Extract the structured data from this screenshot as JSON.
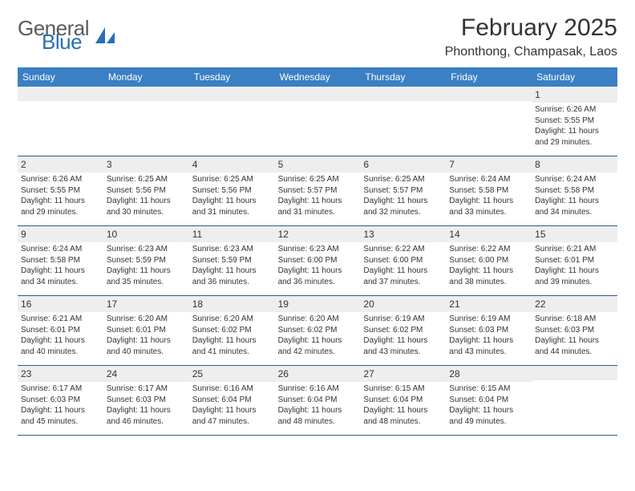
{
  "brand": {
    "general": "General",
    "blue": "Blue"
  },
  "title": "February 2025",
  "location": "Phonthong, Champasak, Laos",
  "colors": {
    "header_bg": "#3b7fc4",
    "header_text": "#ffffff",
    "row_divider": "#2a5b8f",
    "strip_bg": "#eeeeee",
    "logo_gray": "#5a5a5a",
    "logo_blue": "#2a6fb5"
  },
  "weekdays": [
    "Sunday",
    "Monday",
    "Tuesday",
    "Wednesday",
    "Thursday",
    "Friday",
    "Saturday"
  ],
  "weeks": [
    [
      {
        "empty": true
      },
      {
        "empty": true
      },
      {
        "empty": true
      },
      {
        "empty": true
      },
      {
        "empty": true
      },
      {
        "empty": true
      },
      {
        "n": "1",
        "sunrise": "Sunrise: 6:26 AM",
        "sunset": "Sunset: 5:55 PM",
        "day1": "Daylight: 11 hours",
        "day2": "and 29 minutes."
      }
    ],
    [
      {
        "n": "2",
        "sunrise": "Sunrise: 6:26 AM",
        "sunset": "Sunset: 5:55 PM",
        "day1": "Daylight: 11 hours",
        "day2": "and 29 minutes."
      },
      {
        "n": "3",
        "sunrise": "Sunrise: 6:25 AM",
        "sunset": "Sunset: 5:56 PM",
        "day1": "Daylight: 11 hours",
        "day2": "and 30 minutes."
      },
      {
        "n": "4",
        "sunrise": "Sunrise: 6:25 AM",
        "sunset": "Sunset: 5:56 PM",
        "day1": "Daylight: 11 hours",
        "day2": "and 31 minutes."
      },
      {
        "n": "5",
        "sunrise": "Sunrise: 6:25 AM",
        "sunset": "Sunset: 5:57 PM",
        "day1": "Daylight: 11 hours",
        "day2": "and 31 minutes."
      },
      {
        "n": "6",
        "sunrise": "Sunrise: 6:25 AM",
        "sunset": "Sunset: 5:57 PM",
        "day1": "Daylight: 11 hours",
        "day2": "and 32 minutes."
      },
      {
        "n": "7",
        "sunrise": "Sunrise: 6:24 AM",
        "sunset": "Sunset: 5:58 PM",
        "day1": "Daylight: 11 hours",
        "day2": "and 33 minutes."
      },
      {
        "n": "8",
        "sunrise": "Sunrise: 6:24 AM",
        "sunset": "Sunset: 5:58 PM",
        "day1": "Daylight: 11 hours",
        "day2": "and 34 minutes."
      }
    ],
    [
      {
        "n": "9",
        "sunrise": "Sunrise: 6:24 AM",
        "sunset": "Sunset: 5:58 PM",
        "day1": "Daylight: 11 hours",
        "day2": "and 34 minutes."
      },
      {
        "n": "10",
        "sunrise": "Sunrise: 6:23 AM",
        "sunset": "Sunset: 5:59 PM",
        "day1": "Daylight: 11 hours",
        "day2": "and 35 minutes."
      },
      {
        "n": "11",
        "sunrise": "Sunrise: 6:23 AM",
        "sunset": "Sunset: 5:59 PM",
        "day1": "Daylight: 11 hours",
        "day2": "and 36 minutes."
      },
      {
        "n": "12",
        "sunrise": "Sunrise: 6:23 AM",
        "sunset": "Sunset: 6:00 PM",
        "day1": "Daylight: 11 hours",
        "day2": "and 36 minutes."
      },
      {
        "n": "13",
        "sunrise": "Sunrise: 6:22 AM",
        "sunset": "Sunset: 6:00 PM",
        "day1": "Daylight: 11 hours",
        "day2": "and 37 minutes."
      },
      {
        "n": "14",
        "sunrise": "Sunrise: 6:22 AM",
        "sunset": "Sunset: 6:00 PM",
        "day1": "Daylight: 11 hours",
        "day2": "and 38 minutes."
      },
      {
        "n": "15",
        "sunrise": "Sunrise: 6:21 AM",
        "sunset": "Sunset: 6:01 PM",
        "day1": "Daylight: 11 hours",
        "day2": "and 39 minutes."
      }
    ],
    [
      {
        "n": "16",
        "sunrise": "Sunrise: 6:21 AM",
        "sunset": "Sunset: 6:01 PM",
        "day1": "Daylight: 11 hours",
        "day2": "and 40 minutes."
      },
      {
        "n": "17",
        "sunrise": "Sunrise: 6:20 AM",
        "sunset": "Sunset: 6:01 PM",
        "day1": "Daylight: 11 hours",
        "day2": "and 40 minutes."
      },
      {
        "n": "18",
        "sunrise": "Sunrise: 6:20 AM",
        "sunset": "Sunset: 6:02 PM",
        "day1": "Daylight: 11 hours",
        "day2": "and 41 minutes."
      },
      {
        "n": "19",
        "sunrise": "Sunrise: 6:20 AM",
        "sunset": "Sunset: 6:02 PM",
        "day1": "Daylight: 11 hours",
        "day2": "and 42 minutes."
      },
      {
        "n": "20",
        "sunrise": "Sunrise: 6:19 AM",
        "sunset": "Sunset: 6:02 PM",
        "day1": "Daylight: 11 hours",
        "day2": "and 43 minutes."
      },
      {
        "n": "21",
        "sunrise": "Sunrise: 6:19 AM",
        "sunset": "Sunset: 6:03 PM",
        "day1": "Daylight: 11 hours",
        "day2": "and 43 minutes."
      },
      {
        "n": "22",
        "sunrise": "Sunrise: 6:18 AM",
        "sunset": "Sunset: 6:03 PM",
        "day1": "Daylight: 11 hours",
        "day2": "and 44 minutes."
      }
    ],
    [
      {
        "n": "23",
        "sunrise": "Sunrise: 6:17 AM",
        "sunset": "Sunset: 6:03 PM",
        "day1": "Daylight: 11 hours",
        "day2": "and 45 minutes."
      },
      {
        "n": "24",
        "sunrise": "Sunrise: 6:17 AM",
        "sunset": "Sunset: 6:03 PM",
        "day1": "Daylight: 11 hours",
        "day2": "and 46 minutes."
      },
      {
        "n": "25",
        "sunrise": "Sunrise: 6:16 AM",
        "sunset": "Sunset: 6:04 PM",
        "day1": "Daylight: 11 hours",
        "day2": "and 47 minutes."
      },
      {
        "n": "26",
        "sunrise": "Sunrise: 6:16 AM",
        "sunset": "Sunset: 6:04 PM",
        "day1": "Daylight: 11 hours",
        "day2": "and 48 minutes."
      },
      {
        "n": "27",
        "sunrise": "Sunrise: 6:15 AM",
        "sunset": "Sunset: 6:04 PM",
        "day1": "Daylight: 11 hours",
        "day2": "and 48 minutes."
      },
      {
        "n": "28",
        "sunrise": "Sunrise: 6:15 AM",
        "sunset": "Sunset: 6:04 PM",
        "day1": "Daylight: 11 hours",
        "day2": "and 49 minutes."
      },
      {
        "empty": true
      }
    ]
  ]
}
